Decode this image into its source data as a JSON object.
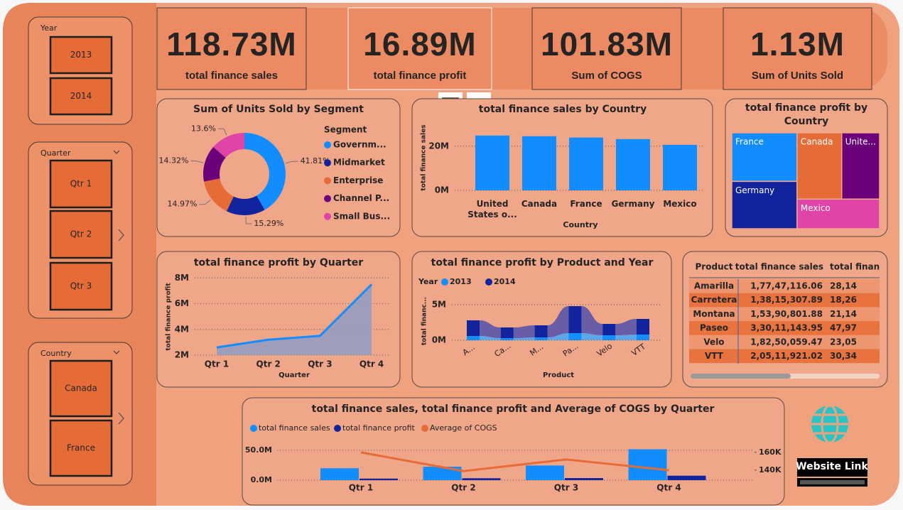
{
  "slicers": [
    {
      "title": "Year",
      "items": [
        "2013",
        "2014"
      ]
    },
    {
      "title": "Quarter",
      "items": [
        "Qtr 1",
        "Qtr 2",
        "Qtr 3"
      ]
    },
    {
      "title": "Country",
      "items": [
        "Canada",
        "France"
      ]
    }
  ],
  "kpis": [
    {
      "value": "118.73M",
      "label": "total finance sales"
    },
    {
      "value": "16.89M",
      "label": "total finance profit"
    },
    {
      "value": "101.83M",
      "label": "Sum of COGS"
    },
    {
      "value": "1.13M",
      "label": "Sum of Units Sold"
    }
  ],
  "chart_data": [
    {
      "type": "donut",
      "title": "Sum of Units Sold by Segment",
      "legend_title": "Segment",
      "categories": [
        "Governm...",
        "Midmarket",
        "Enterprise",
        "Channel P...",
        "Small Bus..."
      ],
      "values": [
        41.81,
        15.29,
        14.97,
        14.32,
        13.6
      ],
      "value_labels": [
        "41.81%",
        "15.29%",
        "14.97%",
        "14.32%",
        "13.6%"
      ],
      "colors": [
        "#118dff",
        "#12239e",
        "#e66c37",
        "#6b007b",
        "#e044a7"
      ]
    },
    {
      "type": "bar",
      "title": "total finance sales by Country",
      "x_label": "Country",
      "y_label": "total finance sales",
      "categories": [
        "United States o...",
        "Canada",
        "France",
        "Germany",
        "Mexico"
      ],
      "values": [
        24800000,
        24500000,
        23900000,
        23200000,
        20600000
      ],
      "color": "#118dff",
      "ylim": [
        0,
        27000000
      ],
      "yticks": [
        {
          "value": 0,
          "label": "0M"
        },
        {
          "value": 20000000,
          "label": "20M"
        }
      ],
      "grid": true
    },
    {
      "type": "treemap",
      "title": "total finance profit by Country",
      "categories": [
        "France",
        "Germany",
        "Canada",
        "Unite...",
        "Mexico"
      ],
      "values": [
        3780000,
        3680000,
        3530000,
        2990000,
        2910000
      ],
      "colors": [
        "#118dff",
        "#12239e",
        "#e66c37",
        "#6b007b",
        "#e044a7"
      ]
    },
    {
      "type": "area",
      "title": "total finance profit by Quarter",
      "x_label": "Quarter",
      "y_label": "total finance profit",
      "categories": [
        "Qtr 1",
        "Qtr 2",
        "Qtr 3",
        "Qtr 4"
      ],
      "values": [
        2600000,
        3200000,
        3500000,
        7500000
      ],
      "color": "#118dff",
      "ylim": [
        2000000,
        8400000
      ],
      "yticks": [
        {
          "value": 2000000,
          "label": "2M"
        },
        {
          "value": 4000000,
          "label": "4M"
        },
        {
          "value": 6000000,
          "label": "6M"
        },
        {
          "value": 8000000,
          "label": "8M"
        }
      ],
      "grid": true
    },
    {
      "type": "ribbon",
      "title": "total finance profit by Product and Year",
      "legend_title": "Year",
      "x_label": "Product",
      "y_label": "total financ...",
      "categories": [
        "A...",
        "Ca...",
        "M...",
        "Pa...",
        "Velo",
        "VTT"
      ],
      "series": [
        {
          "name": "2013",
          "color": "#118dff",
          "values": [
            600000,
            300000,
            400000,
            1000000,
            700000,
            800000
          ]
        },
        {
          "name": "2014",
          "color": "#12239e",
          "values": [
            2200000,
            1500000,
            1700000,
            3800000,
            1600000,
            2200000
          ]
        }
      ],
      "ylim": [
        0,
        5500000
      ],
      "yticks": [
        {
          "value": 0,
          "label": "0M"
        },
        {
          "value": 5000000,
          "label": "5M"
        }
      ],
      "grid": true
    },
    {
      "type": "combo",
      "title": "total finance sales, total finance profit and Average of COGS by Quarter",
      "categories": [
        "Qtr 1",
        "Qtr 2",
        "Qtr 3",
        "Qtr 4"
      ],
      "series": [
        {
          "name": "total finance sales",
          "color": "#118dff",
          "type": "bar",
          "values": [
            20000000,
            22500000,
            24500000,
            51700000
          ]
        },
        {
          "name": "total finance profit",
          "color": "#12239e",
          "type": "bar",
          "values": [
            2600000,
            3200000,
            3500000,
            7500000
          ]
        },
        {
          "name": "Average of COGS",
          "color": "#e66c37",
          "type": "line",
          "axis": "y2",
          "values": [
            160000,
            139000,
            152000,
            140000
          ]
        }
      ],
      "ylim": [
        0,
        57000000
      ],
      "yticks": [
        {
          "value": 0,
          "label": "0.0M"
        },
        {
          "value": 50000000,
          "label": "50.0M"
        }
      ],
      "y2lim": [
        128800,
        167000
      ],
      "y2ticks": [
        {
          "value": 140000,
          "label": "140K"
        },
        {
          "value": 160000,
          "label": "160K"
        }
      ],
      "grid": true
    }
  ],
  "table": {
    "header": [
      "Product",
      "total finance sales",
      "total financ"
    ],
    "rows": [
      [
        "Amarilla",
        "1,77,47,116.06",
        "28,14"
      ],
      [
        "Carretera",
        "1,38,15,307.89",
        "18,26"
      ],
      [
        "Montana",
        "1,53,90,801.88",
        "21,14"
      ],
      [
        "Paseo",
        "3,30,11,143.95",
        "47,97"
      ],
      [
        "Velo",
        "1,82,50,059.47",
        "23,05"
      ],
      [
        "VTT",
        "2,05,11,921.02",
        "30,34"
      ]
    ]
  },
  "website_link": "Website Link"
}
